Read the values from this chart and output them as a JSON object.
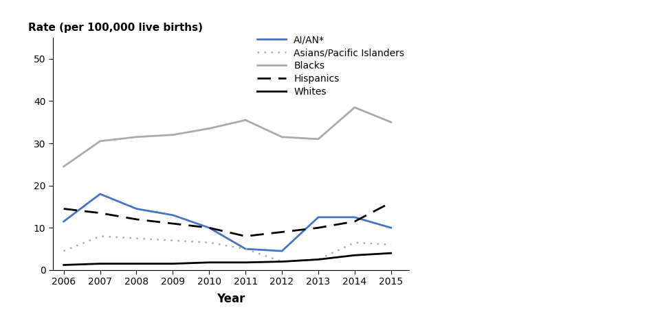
{
  "years": [
    2006,
    2007,
    2008,
    2009,
    2010,
    2011,
    2012,
    2013,
    2014,
    2015
  ],
  "series": {
    "AI/AN*": {
      "values": [
        11.5,
        18.0,
        14.5,
        13.0,
        10.0,
        5.0,
        4.5,
        12.5,
        12.5,
        10.0
      ],
      "color": "#4472C4",
      "linestyle": "solid",
      "linewidth": 2.0
    },
    "Asians/Pacific Islanders": {
      "values": [
        4.5,
        8.0,
        7.5,
        7.0,
        6.5,
        5.0,
        2.0,
        2.5,
        6.5,
        6.0
      ],
      "color": "#aaaaaa",
      "linestyle": "dotted",
      "linewidth": 1.8
    },
    "Blacks": {
      "values": [
        24.5,
        30.5,
        31.5,
        32.0,
        33.5,
        35.5,
        31.5,
        31.0,
        38.5,
        35.0
      ],
      "color": "#aaaaaa",
      "linestyle": "solid",
      "linewidth": 2.0
    },
    "Hispanics": {
      "values": [
        14.5,
        13.5,
        12.0,
        11.0,
        10.0,
        8.0,
        9.0,
        10.0,
        11.5,
        16.0
      ],
      "color": "#000000",
      "linestyle": "dashed",
      "linewidth": 2.0
    },
    "Whites": {
      "values": [
        1.2,
        1.5,
        1.5,
        1.5,
        1.8,
        1.8,
        2.0,
        2.5,
        3.5,
        4.0
      ],
      "color": "#000000",
      "linestyle": "solid",
      "linewidth": 2.0
    }
  },
  "ylabel": "Rate (per 100,000 live births)",
  "xlabel": "Year",
  "ylim": [
    0,
    55
  ],
  "yticks": [
    0,
    10,
    20,
    30,
    40,
    50
  ],
  "legend_order": [
    "AI/AN*",
    "Asians/Pacific Islanders",
    "Blacks",
    "Hispanics",
    "Whites"
  ],
  "background_color": "#ffffff"
}
